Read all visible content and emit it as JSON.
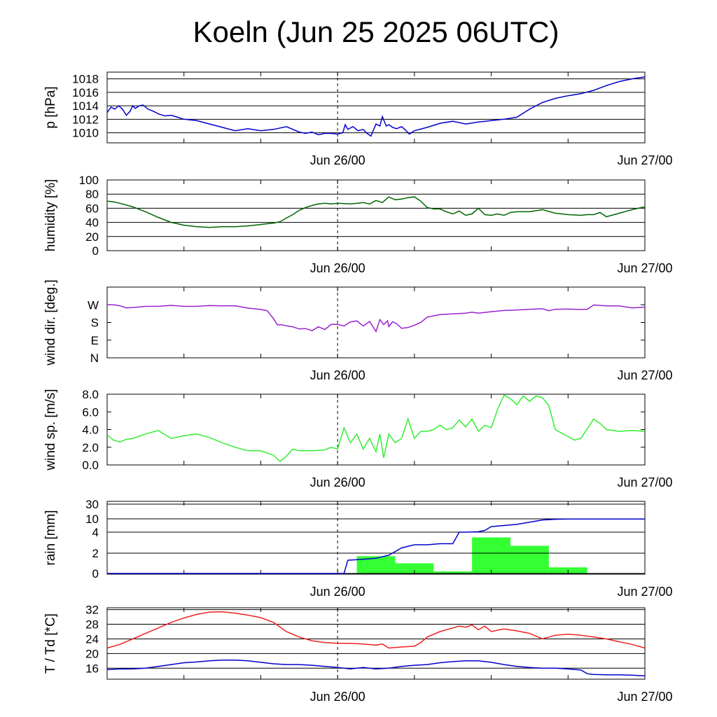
{
  "title": "Koeln (Jun 25 2025 06UTC)",
  "x_axis": {
    "tick_labels": [
      "Jun 26/00",
      "Jun 27/00"
    ],
    "range_hours": [
      0,
      42
    ],
    "label_hours": [
      18,
      42
    ]
  },
  "chart_data": [
    {
      "type": "line",
      "id": "pressure",
      "ylabel": "p [hPa]",
      "ylim": [
        1008.5,
        1019
      ],
      "yticks": [
        1010,
        1012,
        1014,
        1016,
        1018
      ],
      "ytick_labels": [
        "1010",
        "1012",
        "1014",
        "1016",
        "1018"
      ],
      "grid": true,
      "series": [
        {
          "color": "#0000cc",
          "x": [
            0,
            0.3,
            0.6,
            0.9,
            1.2,
            1.5,
            1.8,
            2,
            2.2,
            2.5,
            2.8,
            3.2,
            3.6,
            4,
            4.5,
            5,
            5.5,
            6,
            7,
            8,
            9,
            10,
            11,
            12,
            13,
            14,
            15,
            15.5,
            16,
            16.5,
            17,
            17.5,
            18,
            18.4,
            18.6,
            18.8,
            19.2,
            19.6,
            20,
            20.3,
            20.6,
            21,
            21.3,
            21.5,
            21.8,
            22,
            22.3,
            22.6,
            23,
            23.3,
            23.6,
            24,
            25,
            26,
            27,
            28,
            29,
            30,
            31,
            32,
            33,
            34,
            35,
            36,
            37,
            38,
            39,
            40,
            41,
            42
          ],
          "y": [
            1013,
            1013.8,
            1013.5,
            1014,
            1013.5,
            1012.6,
            1013.2,
            1014,
            1013.6,
            1014,
            1014.1,
            1013.5,
            1013.2,
            1012.8,
            1012.5,
            1012.6,
            1012.3,
            1012,
            1011.8,
            1011.3,
            1010.8,
            1010.3,
            1010.6,
            1010.3,
            1010.5,
            1010.9,
            1010.1,
            1009.9,
            1010.1,
            1009.7,
            1009.9,
            1009.9,
            1009.8,
            1010,
            1011.2,
            1010.5,
            1010.9,
            1010.3,
            1010.5,
            1009.9,
            1009.5,
            1011.3,
            1011,
            1012.4,
            1011,
            1011.2,
            1010.8,
            1010.6,
            1010.9,
            1010.4,
            1009.8,
            1010.3,
            1010.8,
            1011.4,
            1011.7,
            1011.3,
            1011.6,
            1011.8,
            1012,
            1012.3,
            1013.5,
            1014.5,
            1015.1,
            1015.5,
            1015.8,
            1016.3,
            1017,
            1017.6,
            1018,
            1018.3
          ]
        }
      ]
    },
    {
      "type": "line",
      "id": "humidity",
      "ylabel": "humidity [%]",
      "ylim": [
        0,
        100
      ],
      "yticks": [
        0,
        20,
        40,
        60,
        80,
        100
      ],
      "ytick_labels": [
        "0",
        "20",
        "40",
        "60",
        "80",
        "100"
      ],
      "grid": true,
      "series": [
        {
          "color": "#006600",
          "x": [
            0,
            0.5,
            1,
            2,
            3,
            4,
            5,
            6,
            7,
            8,
            9,
            10,
            11,
            12,
            13,
            13.5,
            14,
            14.5,
            15,
            15.5,
            16,
            16.5,
            17,
            17.5,
            18,
            19,
            20,
            20.5,
            21,
            21.5,
            22,
            22.5,
            23,
            23.5,
            24,
            24.5,
            25,
            25.5,
            26,
            26.5,
            27,
            27.5,
            28,
            28.5,
            29,
            29.5,
            30,
            30.5,
            31,
            31.5,
            32,
            33,
            34,
            35,
            36,
            37,
            37.5,
            38,
            38.5,
            39,
            40,
            41,
            42
          ],
          "y": [
            70,
            69,
            67,
            62,
            55,
            47,
            40,
            36,
            34,
            33,
            34,
            34,
            35,
            37,
            39,
            41,
            46,
            51,
            57,
            61,
            64,
            66,
            67,
            66,
            67,
            66,
            68,
            66,
            71,
            68,
            76,
            72,
            73,
            75,
            76,
            70,
            61,
            59,
            59,
            55,
            52,
            56,
            50,
            52,
            60,
            51,
            50,
            52,
            50,
            54,
            55,
            55,
            58,
            53,
            51,
            50,
            51,
            51,
            54,
            48,
            53,
            58,
            62
          ]
        }
      ]
    },
    {
      "type": "line",
      "id": "wind_dir",
      "ylabel": "wind dir. [deg.]",
      "ylim": [
        0,
        360
      ],
      "yticks": [
        0,
        90,
        180,
        270
      ],
      "ytick_labels": [
        "N",
        "E",
        "S",
        "W"
      ],
      "grid": false,
      "series": [
        {
          "color": "#9922cc",
          "x": [
            0,
            0.5,
            1,
            1.5,
            2,
            3,
            4,
            5,
            6,
            7,
            8,
            9,
            10,
            11,
            12,
            12.5,
            13,
            13.3,
            13.6,
            14,
            14.5,
            15,
            15.5,
            16,
            16.5,
            17,
            17.5,
            18,
            18.5,
            19,
            19.5,
            20,
            20.5,
            21,
            21.3,
            21.6,
            21.9,
            22,
            22.3,
            22.6,
            23,
            23.5,
            24,
            24.5,
            25,
            26,
            27,
            28,
            28.5,
            29,
            30,
            31,
            32,
            33,
            34,
            34.5,
            35,
            36,
            37,
            37.5,
            38,
            39,
            40,
            41,
            42
          ],
          "y": [
            270,
            270,
            265,
            254,
            256,
            262,
            262,
            267,
            262,
            262,
            266,
            265,
            265,
            253,
            246,
            240,
            199,
            168,
            168,
            163,
            158,
            147,
            149,
            138,
            158,
            144,
            170,
            170,
            162,
            183,
            188,
            162,
            185,
            134,
            195,
            169,
            189,
            159,
            184,
            174,
            150,
            154,
            166,
            180,
            207,
            220,
            224,
            227,
            232,
            227,
            235,
            241,
            243,
            247,
            250,
            240,
            247,
            248,
            246,
            247,
            269,
            264,
            264,
            254,
            258
          ]
        }
      ]
    },
    {
      "type": "line",
      "id": "wind_speed",
      "ylabel": "wind sp. [m/s]",
      "ylim": [
        0,
        8
      ],
      "yticks": [
        0,
        2,
        4,
        6,
        8
      ],
      "ytick_labels": [
        "0.0",
        "2.0",
        "4.0",
        "6.0",
        "8.0"
      ],
      "grid": false,
      "series": [
        {
          "color": "#33ee33",
          "x": [
            0,
            0.5,
            1,
            1.5,
            2,
            3,
            4,
            5,
            6,
            7,
            8,
            9,
            10,
            11,
            12,
            13,
            13.5,
            14,
            14.5,
            15,
            16,
            17,
            17.5,
            18,
            18.5,
            19,
            19.5,
            20,
            20.5,
            21,
            21.3,
            21.6,
            22,
            22.5,
            23,
            23.5,
            24,
            24.5,
            25,
            25.5,
            26,
            26.5,
            27,
            27.5,
            28,
            28.5,
            29,
            29.5,
            30,
            30.5,
            31,
            31.5,
            32,
            32.5,
            33,
            33.5,
            34,
            34.5,
            35,
            36,
            36.5,
            37,
            38,
            38.5,
            39,
            40,
            41,
            42
          ],
          "y": [
            3.4,
            2.8,
            2.6,
            2.9,
            3.0,
            3.5,
            3.9,
            3.0,
            3.3,
            3.5,
            3.1,
            2.5,
            2.0,
            1.6,
            1.6,
            1.1,
            0.4,
            1.0,
            1.8,
            1.6,
            1.6,
            1.7,
            2.0,
            1.8,
            4.2,
            2.5,
            3.5,
            1.8,
            3.0,
            1.5,
            3.5,
            0.8,
            3.5,
            2.5,
            3.0,
            5.2,
            3.0,
            3.8,
            3.8,
            4.0,
            4.5,
            4.0,
            4.2,
            5.1,
            4.3,
            5.2,
            3.8,
            4.5,
            4.2,
            6.3,
            7.9,
            7.5,
            6.8,
            7.8,
            7.2,
            7.8,
            7.6,
            6.7,
            4.0,
            3.2,
            2.8,
            3.0,
            5.2,
            4.7,
            4.0,
            3.8,
            3.9,
            3.8
          ]
        }
      ]
    },
    {
      "type": "bar",
      "id": "rain",
      "ylabel": "rain [mm]",
      "yscale": "nonlinear",
      "yticks": [
        0,
        2,
        4,
        10,
        30
      ],
      "ytick_labels": [
        "0",
        "2",
        "4",
        "10",
        "30"
      ],
      "grid": true,
      "bars": {
        "color": "#33ff33",
        "x_start": [
          19.5,
          22.5,
          25.5,
          28.5,
          31.5,
          34.5
        ],
        "x_end": [
          22.5,
          25.5,
          28.5,
          31.5,
          34.5,
          37.5
        ],
        "values": [
          1.7,
          1.0,
          0.2,
          3.5,
          2.7,
          0.6
        ]
      },
      "series": [
        {
          "color": "#0000cc",
          "x": [
            0,
            18.5,
            18.8,
            20,
            21,
            22,
            23,
            24,
            25,
            26,
            27,
            27.5,
            28,
            29,
            29.5,
            30,
            31,
            32,
            33,
            34,
            35,
            36,
            38,
            40,
            42
          ],
          "y": [
            0,
            0,
            1.3,
            1.4,
            1.5,
            1.8,
            2.5,
            2.8,
            2.8,
            2.9,
            2.9,
            4,
            4,
            4.2,
            4.8,
            6.5,
            7,
            7.5,
            8.5,
            9.5,
            9.8,
            9.9,
            9.9,
            9.9,
            9.9
          ]
        }
      ]
    },
    {
      "type": "line",
      "id": "temperature",
      "ylabel": "T / Td [*C]",
      "ylim": [
        13,
        32.5
      ],
      "yticks": [
        16,
        20,
        24,
        28,
        32
      ],
      "ytick_labels": [
        "16",
        "20",
        "24",
        "28",
        "32"
      ],
      "grid": true,
      "series": [
        {
          "color": "#ee2222",
          "x": [
            0,
            1,
            2,
            3,
            4,
            5,
            6,
            7,
            8,
            9,
            10,
            11,
            12,
            13,
            14,
            15,
            16,
            17,
            18,
            19,
            20,
            21,
            21.5,
            22,
            23,
            24,
            24.5,
            25,
            26,
            27,
            27.5,
            28,
            28.5,
            29,
            29.5,
            30,
            31,
            32,
            33,
            34,
            35,
            36,
            37,
            38,
            39,
            40,
            41,
            42
          ],
          "y": [
            21.5,
            22.5,
            24,
            25.5,
            27,
            28.5,
            29.7,
            30.7,
            31.3,
            31.4,
            31,
            30.5,
            29.8,
            28.5,
            26,
            24.5,
            23.5,
            23,
            22.8,
            22.8,
            22.6,
            22.3,
            22.6,
            21.5,
            21.8,
            22,
            23,
            24.5,
            26,
            27,
            27.5,
            27.2,
            27.8,
            26.5,
            27.5,
            26,
            26.7,
            26.2,
            25.5,
            24,
            25,
            25.3,
            25,
            24.5,
            24,
            23.2,
            22.5,
            21.5
          ]
        },
        {
          "color": "#0000cc",
          "x": [
            0,
            1,
            2,
            3,
            4,
            5,
            6,
            7,
            8,
            9,
            10,
            11,
            12,
            13,
            14,
            15,
            16,
            17,
            18,
            19,
            20,
            21,
            22,
            23,
            24,
            25,
            26,
            27,
            28,
            29,
            30,
            31,
            32,
            33,
            34,
            35,
            36,
            37,
            37.5,
            38,
            39,
            40,
            41,
            42
          ],
          "y": [
            15.6,
            15.8,
            15.8,
            16,
            16.5,
            17,
            17.5,
            17.7,
            18,
            18.2,
            18.2,
            18,
            17.6,
            17.2,
            17,
            17,
            16.8,
            16.5,
            16.2,
            15.8,
            16.2,
            15.8,
            16,
            16.5,
            16.8,
            17,
            17.5,
            17.8,
            18,
            18,
            17.6,
            17,
            16.5,
            16.2,
            16,
            16,
            15.8,
            15.5,
            14.5,
            14.3,
            14.2,
            14.2,
            14.1,
            13.9
          ]
        }
      ]
    }
  ]
}
